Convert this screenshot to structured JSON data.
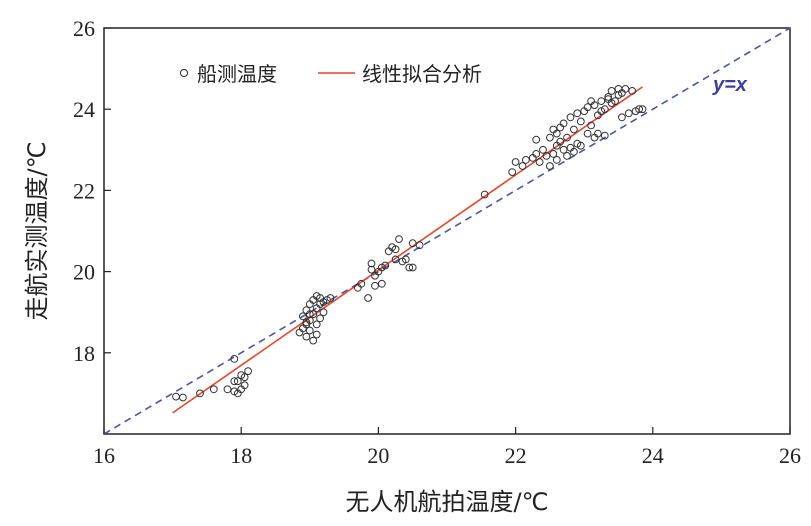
{
  "chart_data": {
    "type": "scatter",
    "xlabel": "无人机航拍温度/℃",
    "ylabel": "走航实测温度/℃",
    "xlim": [
      16,
      26
    ],
    "ylim": [
      16,
      26
    ],
    "xticks": [
      16,
      18,
      20,
      22,
      24,
      26
    ],
    "yticks": [
      18,
      20,
      22,
      24,
      26
    ],
    "grid": false,
    "legend_position": "top-left",
    "series": [
      {
        "name": "船测温度",
        "kind": "scatter",
        "marker": "open-circle",
        "color": "#333333",
        "points": [
          [
            17.05,
            16.92
          ],
          [
            17.15,
            16.9
          ],
          [
            17.4,
            17.0
          ],
          [
            17.6,
            17.1
          ],
          [
            17.8,
            17.1
          ],
          [
            17.9,
            17.05
          ],
          [
            17.95,
            17.0
          ],
          [
            17.95,
            17.3
          ],
          [
            18.0,
            17.45
          ],
          [
            18.05,
            17.2
          ],
          [
            18.0,
            17.1
          ],
          [
            18.1,
            17.55
          ],
          [
            17.9,
            17.85
          ],
          [
            17.9,
            17.3
          ],
          [
            18.05,
            17.4
          ],
          [
            18.85,
            18.5
          ],
          [
            18.9,
            18.6
          ],
          [
            18.9,
            18.9
          ],
          [
            18.95,
            18.4
          ],
          [
            18.95,
            18.7
          ],
          [
            18.95,
            19.05
          ],
          [
            19.0,
            18.55
          ],
          [
            19.0,
            18.8
          ],
          [
            19.0,
            19.2
          ],
          [
            19.05,
            18.3
          ],
          [
            19.05,
            18.95
          ],
          [
            19.05,
            19.3
          ],
          [
            19.1,
            18.7
          ],
          [
            19.1,
            19.1
          ],
          [
            19.1,
            18.45
          ],
          [
            19.15,
            18.85
          ],
          [
            19.15,
            19.35
          ],
          [
            19.2,
            19.0
          ],
          [
            19.2,
            19.25
          ],
          [
            19.25,
            19.3
          ],
          [
            19.3,
            19.35
          ],
          [
            19.1,
            19.4
          ],
          [
            19.0,
            18.95
          ],
          [
            18.95,
            18.75
          ],
          [
            19.15,
            19.2
          ],
          [
            19.7,
            19.6
          ],
          [
            19.75,
            19.7
          ],
          [
            19.85,
            19.35
          ],
          [
            19.9,
            20.05
          ],
          [
            19.9,
            20.2
          ],
          [
            19.95,
            19.9
          ],
          [
            20.0,
            20.0
          ],
          [
            20.05,
            20.1
          ],
          [
            20.05,
            19.7
          ],
          [
            20.1,
            20.15
          ],
          [
            20.15,
            20.5
          ],
          [
            20.2,
            20.6
          ],
          [
            20.25,
            20.55
          ],
          [
            20.25,
            20.3
          ],
          [
            20.3,
            20.8
          ],
          [
            20.35,
            20.25
          ],
          [
            20.4,
            20.3
          ],
          [
            20.45,
            20.1
          ],
          [
            20.5,
            20.7
          ],
          [
            20.5,
            20.1
          ],
          [
            20.6,
            20.65
          ],
          [
            19.95,
            19.65
          ],
          [
            21.55,
            21.9
          ],
          [
            21.95,
            22.45
          ],
          [
            22.0,
            22.7
          ],
          [
            22.1,
            22.6
          ],
          [
            22.15,
            22.75
          ],
          [
            22.25,
            22.8
          ],
          [
            22.3,
            22.9
          ],
          [
            22.3,
            23.25
          ],
          [
            22.35,
            22.7
          ],
          [
            22.4,
            23.0
          ],
          [
            22.45,
            22.85
          ],
          [
            22.5,
            23.3
          ],
          [
            22.5,
            22.6
          ],
          [
            22.55,
            23.5
          ],
          [
            22.55,
            22.9
          ],
          [
            22.6,
            23.1
          ],
          [
            22.6,
            22.75
          ],
          [
            22.65,
            23.2
          ],
          [
            22.65,
            23.55
          ],
          [
            22.7,
            23.0
          ],
          [
            22.7,
            23.65
          ],
          [
            22.75,
            22.85
          ],
          [
            22.75,
            23.3
          ],
          [
            22.8,
            23.8
          ],
          [
            22.8,
            23.05
          ],
          [
            22.85,
            23.5
          ],
          [
            22.85,
            22.95
          ],
          [
            22.9,
            23.9
          ],
          [
            22.9,
            23.15
          ],
          [
            22.95,
            23.7
          ],
          [
            23.0,
            23.95
          ],
          [
            23.05,
            23.4
          ],
          [
            23.05,
            24.05
          ],
          [
            23.1,
            23.6
          ],
          [
            23.15,
            23.3
          ],
          [
            23.15,
            24.1
          ],
          [
            23.2,
            23.85
          ],
          [
            23.2,
            23.4
          ],
          [
            23.25,
            24.2
          ],
          [
            23.3,
            24.0
          ],
          [
            23.3,
            23.35
          ],
          [
            23.35,
            24.3
          ],
          [
            23.4,
            24.15
          ],
          [
            23.4,
            24.45
          ],
          [
            23.45,
            24.2
          ],
          [
            23.5,
            24.35
          ],
          [
            23.5,
            24.5
          ],
          [
            23.55,
            24.4
          ],
          [
            23.55,
            23.8
          ],
          [
            23.6,
            24.5
          ],
          [
            23.65,
            23.9
          ],
          [
            23.7,
            24.45
          ],
          [
            23.75,
            23.95
          ],
          [
            23.8,
            24.0
          ],
          [
            23.85,
            24.0
          ],
          [
            22.95,
            23.1
          ],
          [
            23.25,
            23.95
          ],
          [
            22.6,
            23.4
          ],
          [
            23.1,
            24.2
          ],
          [
            23.35,
            24.25
          ]
        ]
      },
      {
        "name": "线性拟合分析",
        "kind": "line",
        "color": "#e8452c",
        "x": [
          17.0,
          23.85
        ],
        "y": [
          16.52,
          24.55
        ]
      },
      {
        "name": "",
        "kind": "reference-line",
        "style": "dashed",
        "color": "#4a55a8",
        "x": [
          16,
          26
        ],
        "y": [
          16,
          26
        ],
        "label": "y=x"
      }
    ]
  }
}
